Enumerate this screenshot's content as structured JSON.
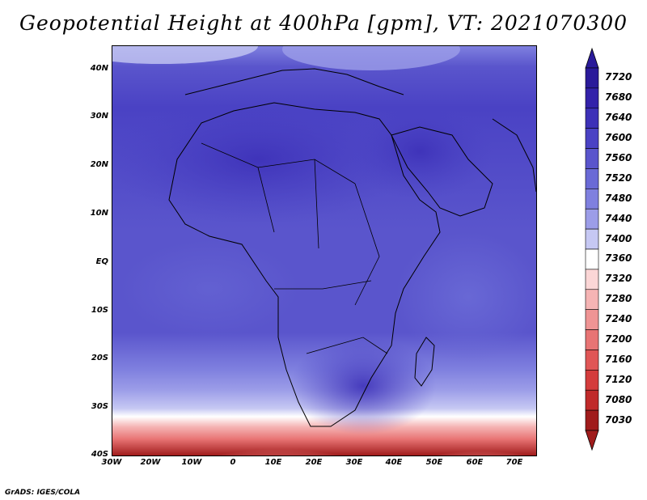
{
  "title": "Geopotential Height at 400hPa [gpm], VT: 2021070300",
  "footer": "GrADS: IGES/COLA",
  "map": {
    "lat_ticks": [
      "40N",
      "30N",
      "20N",
      "10N",
      "EQ",
      "10S",
      "20S",
      "30S",
      "40S"
    ],
    "lon_ticks": [
      "30W",
      "20W",
      "10W",
      "0",
      "10E",
      "20E",
      "30E",
      "40E",
      "50E",
      "60E",
      "70E"
    ],
    "extent": {
      "lon_min": -30,
      "lon_max": 75,
      "lat_min": -40,
      "lat_max": 45
    }
  },
  "colorbar": {
    "labels": [
      "7720",
      "7680",
      "7640",
      "7600",
      "7560",
      "7520",
      "7480",
      "7440",
      "7400",
      "7360",
      "7320",
      "7280",
      "7240",
      "7200",
      "7160",
      "7120",
      "7080",
      "7030"
    ],
    "colors": [
      "#2a1a9a",
      "#3322aa",
      "#3d31b8",
      "#4a42c4",
      "#5a55cc",
      "#6a6ad6",
      "#7f80df",
      "#9c9de8",
      "#c6c8f3",
      "#ffffff",
      "#fbd6d6",
      "#f5b4b4",
      "#ef9494",
      "#e87474",
      "#e05656",
      "#d43c3c",
      "#c02a2a",
      "#a01c1c"
    ]
  }
}
